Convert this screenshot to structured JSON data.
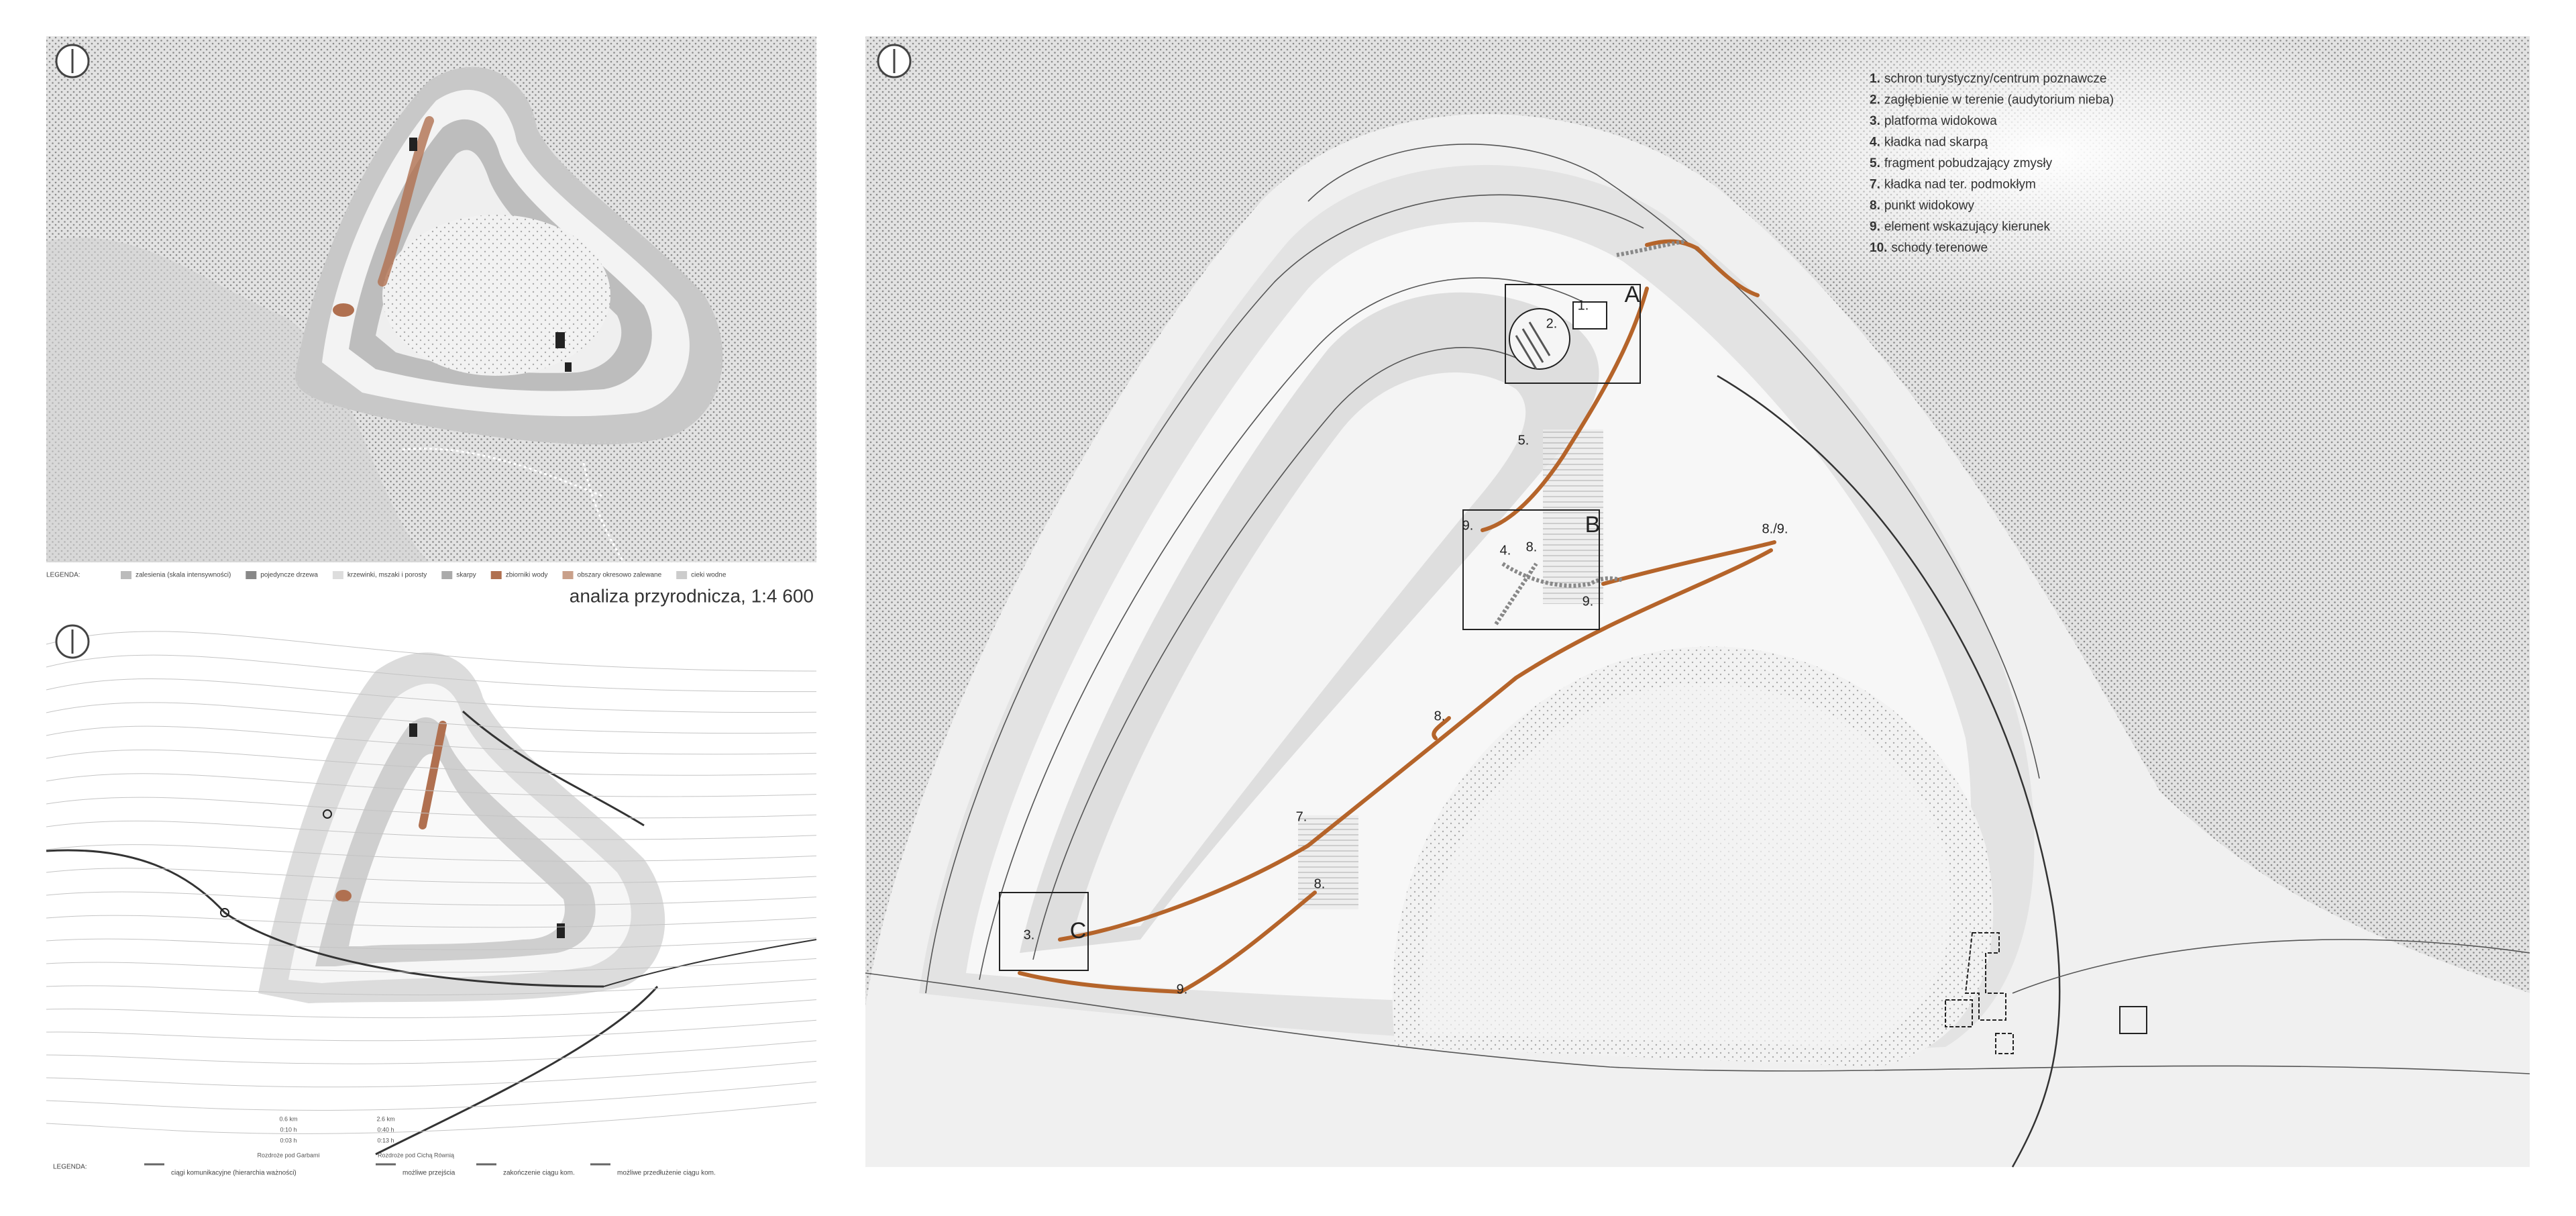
{
  "top_map": {
    "legend_title": "LEGENDA:",
    "legend": [
      "zalesienia (skala intensywności)",
      "pojedyncze drzewa",
      "krzewinki, mszaki i porosty",
      "skarpy",
      "zbiorniki wody",
      "obszary okresowo zalewane",
      "cieki wodne"
    ],
    "caption": "analiza przyrodnicza, 1:4 600"
  },
  "bottom_map": {
    "legend_title": "LEGENDA:",
    "legend": [
      "ciągi komunikacyjne (hierarchia ważności)",
      "możliwe przejścia",
      "zakończenie ciągu kom.",
      "możliwe przedłużenie ciągu kom."
    ],
    "places": [
      "Rozdroże pod Garbami",
      "Rozdroże pod Cichą Równią"
    ],
    "distances": [
      {
        "km": "0.6 km",
        "walk": "0:10 h",
        "bike": "0:03 h"
      },
      {
        "km": "2.6 km",
        "walk": "0:40 h",
        "bike": "0:13 h"
      }
    ]
  },
  "main_map": {
    "legend": [
      {
        "number": "1.",
        "text": "schron turystyczny/centrum poznawcze"
      },
      {
        "number": "2.",
        "text": "zagłębienie w terenie (audytorium nieba)"
      },
      {
        "number": "3.",
        "text": "platforma widokowa"
      },
      {
        "number": "4.",
        "text": "kładka nad skarpą"
      },
      {
        "number": "5.",
        "text": "fragment pobudzający zmysły"
      },
      {
        "number": "7.",
        "text": "kładka nad ter. podmokłym"
      },
      {
        "number": "8.",
        "text": "punkt widokowy"
      },
      {
        "number": "9.",
        "text": "element wskazujący kierunek"
      },
      {
        "number": "10.",
        "text": "schody terenowe"
      }
    ],
    "labels": [
      "1.",
      "2.",
      "A",
      "5.",
      "9.",
      "4.",
      "8.",
      "B",
      "9.",
      "8./9.",
      "8.",
      "7.",
      "8.",
      "3.",
      "C",
      "9."
    ]
  }
}
